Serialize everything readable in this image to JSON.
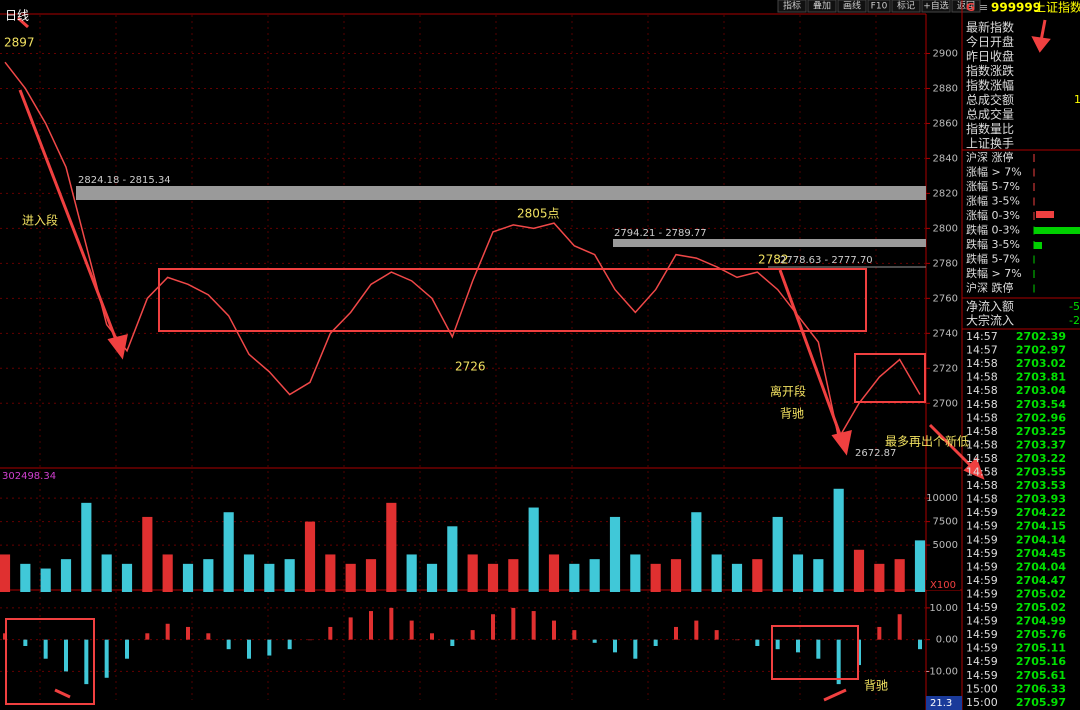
{
  "toolbar": [
    "指标",
    "叠加",
    "画线",
    "F10",
    "标记",
    "+自选",
    "返回"
  ],
  "header": {
    "code_prefix": "G",
    "menu": "≡",
    "code": "999999",
    "name": "上证指数"
  },
  "quote_labels": [
    "最新指数",
    "今日开盘",
    "昨日收盘",
    "指数涨跌",
    "指数涨幅",
    "总成交额",
    "总成交量",
    "指数量比",
    "上证换手"
  ],
  "quote_partial_value": "1",
  "breadth_labels": [
    "沪深 涨停",
    "涨幅 > 7%",
    "涨幅 5-7%",
    "涨幅 3-5%",
    "涨幅 0-3%",
    "跌幅 0-3%",
    "跌幅 3-5%",
    "跌幅 5-7%",
    "跌幅 > 7%",
    "沪深 跌停"
  ],
  "flow": [
    {
      "label": "净流入额",
      "value": "-5"
    },
    {
      "label": "大宗流入",
      "value": "-2"
    }
  ],
  "ticks": [
    [
      "14:57",
      "2702.39"
    ],
    [
      "14:57",
      "2702.97"
    ],
    [
      "14:58",
      "2703.02"
    ],
    [
      "14:58",
      "2703.81"
    ],
    [
      "14:58",
      "2703.04"
    ],
    [
      "14:58",
      "2703.54"
    ],
    [
      "14:58",
      "2702.96"
    ],
    [
      "14:58",
      "2703.25"
    ],
    [
      "14:58",
      "2703.37"
    ],
    [
      "14:58",
      "2703.22"
    ],
    [
      "14:58",
      "2703.55"
    ],
    [
      "14:58",
      "2703.53"
    ],
    [
      "14:58",
      "2703.93"
    ],
    [
      "14:59",
      "2704.22"
    ],
    [
      "14:59",
      "2704.15"
    ],
    [
      "14:59",
      "2704.14"
    ],
    [
      "14:59",
      "2704.45"
    ],
    [
      "14:59",
      "2704.04"
    ],
    [
      "14:59",
      "2704.47"
    ],
    [
      "14:59",
      "2705.02"
    ],
    [
      "14:59",
      "2705.02"
    ],
    [
      "14:59",
      "2704.99"
    ],
    [
      "14:59",
      "2705.76"
    ],
    [
      "14:59",
      "2705.11"
    ],
    [
      "14:59",
      "2705.16"
    ],
    [
      "14:59",
      "2705.61"
    ],
    [
      "15:00",
      "2706.33"
    ],
    [
      "15:00",
      "2705.97"
    ]
  ],
  "annotations": {
    "period": "日线",
    "high": "2897",
    "entry": "进入段",
    "band1": "2824.18 - 2815.34",
    "peak": "2805点",
    "band2": "2794.21 - 2789.77",
    "p2782": "2782",
    "band3": "2778.63 - 2777.70",
    "low2726": "2726",
    "exit": "离开段",
    "divergence": "背驰",
    "new_low": "最多再出个新低",
    "low": "2672.87",
    "volume_total": "302498.34",
    "divergence2": "背驰",
    "macd_value": "21.3"
  },
  "chart_data": {
    "type": "line",
    "price": {
      "values": [
        2895,
        2880,
        2860,
        2835,
        2790,
        2745,
        2730,
        2760,
        2772,
        2768,
        2762,
        2750,
        2728,
        2718,
        2705,
        2712,
        2740,
        2752,
        2768,
        2775,
        2770,
        2760,
        2738,
        2770,
        2798,
        2802,
        2800,
        2803,
        2790,
        2785,
        2765,
        2752,
        2765,
        2785,
        2783,
        2778,
        2772,
        2775,
        2765,
        2750,
        2735,
        2680,
        2700,
        2715,
        2725,
        2705
      ],
      "ylim": [
        2663,
        2922
      ],
      "yticks": [
        2700,
        2720,
        2740,
        2760,
        2780,
        2800,
        2820,
        2840,
        2860,
        2880,
        2900
      ]
    },
    "volume": {
      "values": [
        4000,
        3000,
        2500,
        3500,
        9500,
        4000,
        3000,
        8000,
        4000,
        3000,
        3500,
        8500,
        4000,
        3000,
        3500,
        7500,
        4000,
        3000,
        3500,
        9500,
        4000,
        3000,
        7000,
        4000,
        3000,
        3500,
        9000,
        4000,
        3000,
        3500,
        8000,
        4000,
        3000,
        3500,
        8500,
        4000,
        3000,
        3500,
        8000,
        4000,
        3500,
        11000,
        4500,
        3000,
        3500,
        5500
      ],
      "ylim": [
        0,
        13000
      ],
      "yticks": [
        5000,
        7500,
        10000
      ],
      "unit": "X100"
    },
    "macd": {
      "values": [
        2,
        -2,
        -6,
        -10,
        -14,
        -12,
        -6,
        2,
        5,
        4,
        2,
        -3,
        -6,
        -5,
        -3,
        0,
        4,
        7,
        9,
        10,
        6,
        2,
        -2,
        3,
        8,
        10,
        9,
        6,
        3,
        -1,
        -4,
        -6,
        -2,
        4,
        6,
        3,
        0,
        -2,
        -3,
        -4,
        -6,
        -14,
        -8,
        4,
        8,
        -3
      ],
      "ylim": [
        -19,
        15
      ],
      "yticks": [
        {
          "value": 10,
          "label": "10.00"
        },
        {
          "value": 0,
          "label": "0.00"
        },
        {
          "value": -10,
          "label": "-10.00"
        }
      ]
    }
  }
}
